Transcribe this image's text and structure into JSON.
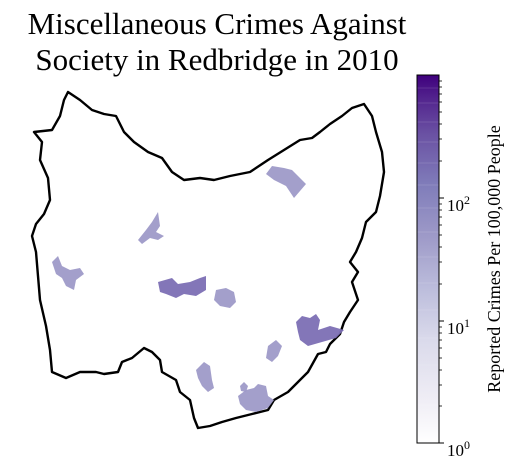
{
  "title_line1": "Miscellaneous Crimes Against",
  "title_line2": "Society in Redbridge in 2010",
  "colorbar": {
    "label": "Reported Crimes Per 100,000 People",
    "scale": "log",
    "range": [
      1,
      1000
    ],
    "ticks": [
      {
        "base": "10",
        "exp": "0",
        "value": 1
      },
      {
        "base": "10",
        "exp": "1",
        "value": 10
      },
      {
        "base": "10",
        "exp": "2",
        "value": 100
      }
    ],
    "colormap": "Purples",
    "colors": [
      "#fcfbfd",
      "#efedf5",
      "#dadaeb",
      "#bcbddc",
      "#9e9ac8",
      "#807dba",
      "#6a51a3",
      "#54278f",
      "#3f007d"
    ]
  },
  "map": {
    "borough": "Redbridge",
    "outline_color": "#000000",
    "region_color_light": "#9e9ac8",
    "region_color_dark": "#6a51a3"
  }
}
